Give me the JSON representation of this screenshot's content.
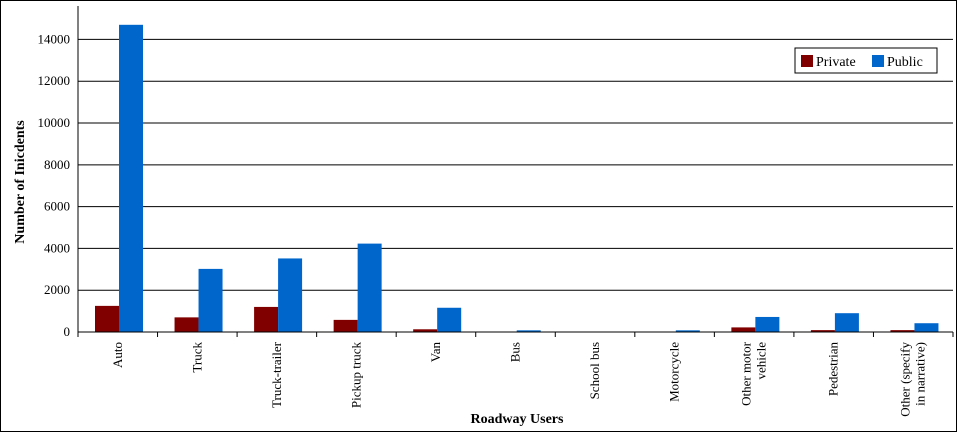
{
  "chart_data": {
    "type": "bar",
    "title": "",
    "xlabel": "Roadway Users",
    "ylabel": "Number of Inicdents",
    "ylim": [
      0,
      15600
    ],
    "yticks": [
      0,
      2000,
      4000,
      6000,
      8000,
      10000,
      12000,
      14000
    ],
    "grid": true,
    "legend_position": "top-right",
    "categories": [
      "Auto",
      "Truck",
      "Truck-trailer",
      "Pickup truck",
      "Van",
      "Bus",
      "School bus",
      "Motorcycle",
      [
        "Other motor",
        "vehicle"
      ],
      "Pedestrian",
      [
        "Other (specify",
        "in narrative)"
      ]
    ],
    "series": [
      {
        "name": "Private",
        "color": "#800000",
        "values": [
          1250,
          700,
          1200,
          580,
          130,
          10,
          5,
          15,
          220,
          90,
          90
        ]
      },
      {
        "name": "Public",
        "color": "#0066cc",
        "values": [
          14700,
          3020,
          3520,
          4230,
          1160,
          80,
          15,
          80,
          720,
          900,
          420
        ]
      }
    ]
  }
}
